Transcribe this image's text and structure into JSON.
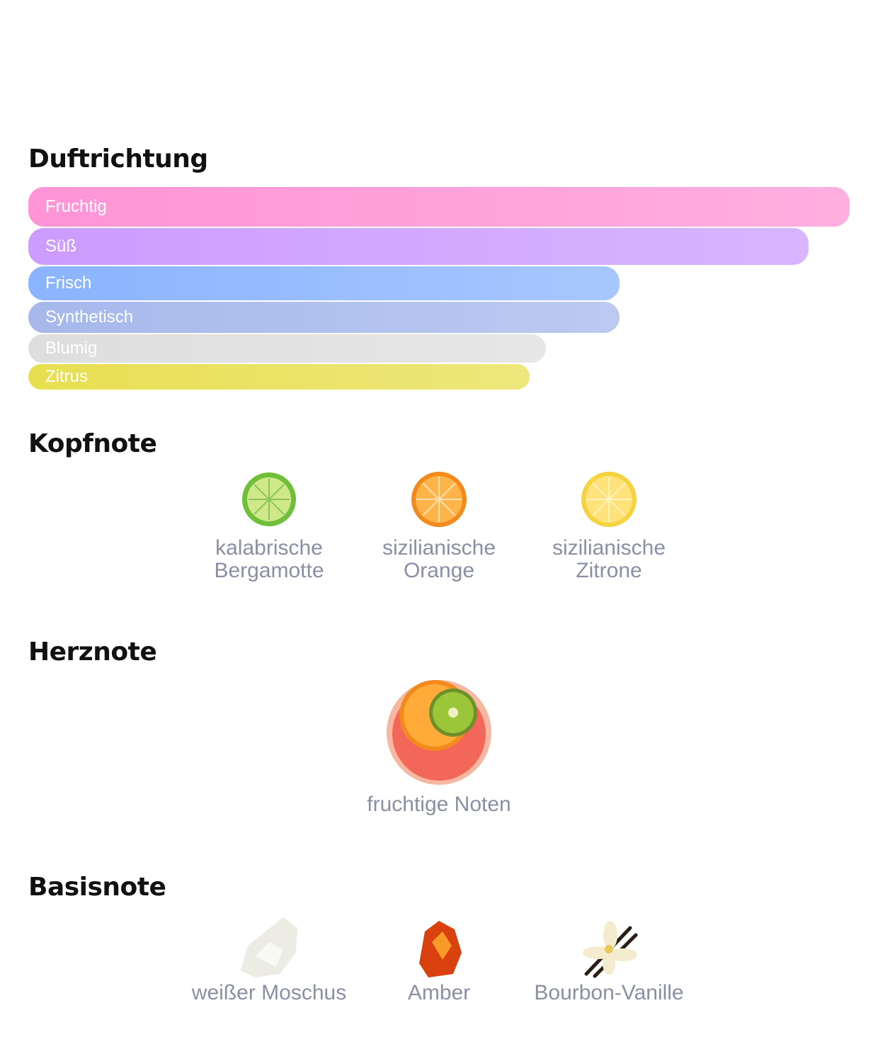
{
  "sections": [
    {
      "title": "Duftrichtung"
    },
    {
      "title": "Kopfnote"
    },
    {
      "title": "Herznote"
    },
    {
      "title": "Basisnote"
    }
  ],
  "accords": {
    "type": "bar",
    "items": [
      {
        "name": "Fruchtig",
        "value": 100,
        "color": "#ff94d6"
      },
      {
        "name": "Süß",
        "value": 95,
        "color": "#cc9cff"
      },
      {
        "name": "Frisch",
        "value": 72,
        "color": "#8ab4ff"
      },
      {
        "name": "Synthetisch",
        "value": 72,
        "color": "#a6b8ec"
      },
      {
        "name": "Blumig",
        "value": 63,
        "color": "#dedede"
      },
      {
        "name": "Zitrus",
        "value": 61,
        "color": "#e8df50"
      }
    ],
    "xlim": [
      0,
      100
    ]
  },
  "kopfnote": [
    {
      "label": [
        "kalabrische",
        "Bergamotte"
      ]
    },
    {
      "label": [
        "sizilianische",
        "Orange"
      ]
    },
    {
      "label": [
        "sizilianische",
        "Zitrone"
      ]
    }
  ],
  "herznote": [
    {
      "label": [
        "fruchtige Noten"
      ]
    }
  ],
  "basisnote": [
    {
      "label": [
        "weißer Moschus"
      ]
    },
    {
      "label": [
        "Amber"
      ]
    },
    {
      "label": [
        "Bourbon-Vanille"
      ]
    }
  ]
}
